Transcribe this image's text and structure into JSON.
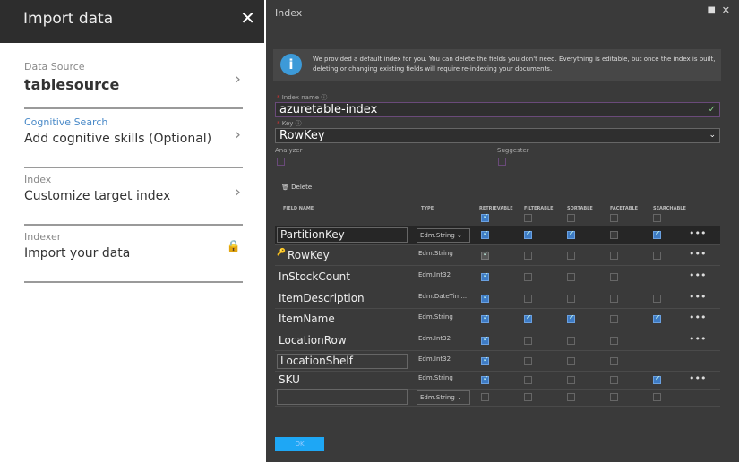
{
  "left": {
    "title": "Import data",
    "steps": [
      {
        "label": "Data Source",
        "value": "tablesource"
      },
      {
        "label": "Cognitive Search",
        "value": "Add cognitive skills (Optional)"
      },
      {
        "label": "Index",
        "value": "Customize target index"
      },
      {
        "label": "Indexer",
        "value": "Import your data",
        "locked": true
      }
    ]
  },
  "index": {
    "title": "Index",
    "info": "We provided a default index for you. You can delete the fields you don't need. Everything is editable, but once the index is built, deleting or changing existing fields will require re-indexing your documents.",
    "index_name_label": "Index name",
    "index_name": "azuretable-index",
    "key_label": "Key",
    "key": "RowKey",
    "analyzer_label": "Analyzer",
    "suggester_label": "Suggester",
    "delete_label": "Delete",
    "columns": [
      "FIELD NAME",
      "TYPE",
      "RETRIEVABLE",
      "FILTERABLE",
      "SORTABLE",
      "FACETABLE",
      "SEARCHABLE"
    ],
    "header_checks": [
      true,
      false,
      false,
      false,
      false
    ],
    "rows": [
      {
        "name": "PartitionKey",
        "type": "Edm.String",
        "checks": [
          true,
          true,
          true,
          false,
          true
        ],
        "more": true
      },
      {
        "name": "RowKey",
        "type": "Edm.String",
        "checks": [
          true,
          false,
          false,
          false,
          false
        ],
        "more": true,
        "key": true
      },
      {
        "name": "InStockCount",
        "type": "Edm.Int32",
        "checks": [
          true,
          false,
          false,
          false,
          null
        ],
        "more": true
      },
      {
        "name": "ItemDescription",
        "type": "Edm.DateTim...",
        "checks": [
          true,
          false,
          false,
          false,
          false
        ],
        "more": true
      },
      {
        "name": "ItemName",
        "type": "Edm.String",
        "checks": [
          true,
          true,
          true,
          false,
          true
        ],
        "more": true
      },
      {
        "name": "LocationRow",
        "type": "Edm.Int32",
        "checks": [
          true,
          false,
          false,
          false,
          null
        ],
        "more": true
      },
      {
        "name": "LocationShelf",
        "type": "Edm.Int32",
        "checks": [
          true,
          false,
          false,
          false,
          null
        ],
        "more": false
      },
      {
        "name": "SKU",
        "type": "Edm.String",
        "checks": [
          true,
          false,
          false,
          false,
          true
        ],
        "more": true
      },
      {
        "name": "",
        "type": "Edm.String",
        "checks": [
          false,
          false,
          false,
          false,
          false
        ],
        "more": false
      }
    ],
    "more_label": "•••",
    "ok_label": "OK"
  }
}
